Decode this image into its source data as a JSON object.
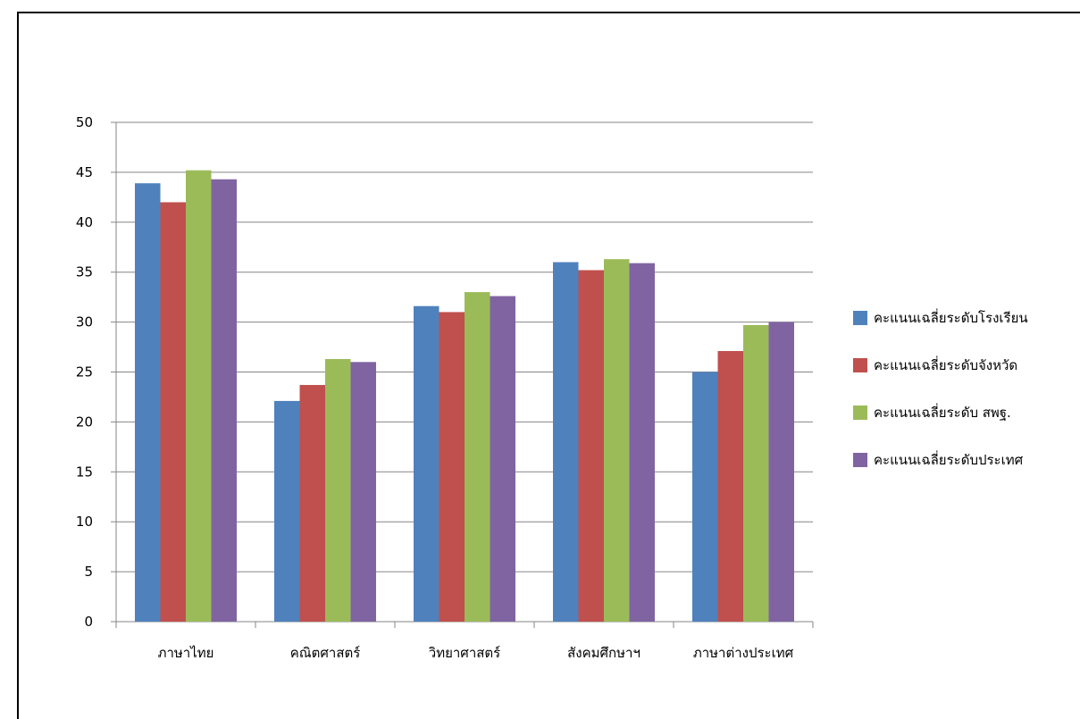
{
  "chart_data": {
    "type": "bar",
    "title": "",
    "xlabel": "",
    "ylabel": "",
    "ylim": [
      0,
      50
    ],
    "yticks": [
      0,
      5,
      10,
      15,
      20,
      25,
      30,
      35,
      40,
      45,
      50
    ],
    "grid": true,
    "legend_position": "right",
    "categories": [
      "ภาษาไทย",
      "คณิตศาสตร์",
      "วิทยาศาสตร์",
      "สังคมศึกษาฯ",
      "ภาษาต่างประเทศ"
    ],
    "series": [
      {
        "name": "คะแนนเฉลี่ยระดับโรงเรียน",
        "color": "#4F81BD",
        "values": [
          43.9,
          22.1,
          31.6,
          36.0,
          25.0
        ]
      },
      {
        "name": "คะแนนเฉลี่ยระดับจังหวัด",
        "color": "#C0504D",
        "values": [
          42.0,
          23.7,
          31.0,
          35.2,
          27.1
        ]
      },
      {
        "name": "คะแนนเฉลี่ยระดับ สพฐ.",
        "color": "#9BBB59",
        "values": [
          45.2,
          26.3,
          33.0,
          36.3,
          29.7
        ]
      },
      {
        "name": "คะแนนเฉลี่ยระดับประเทศ",
        "color": "#8064A2",
        "values": [
          44.3,
          26.0,
          32.6,
          35.9,
          30.0
        ]
      }
    ]
  }
}
